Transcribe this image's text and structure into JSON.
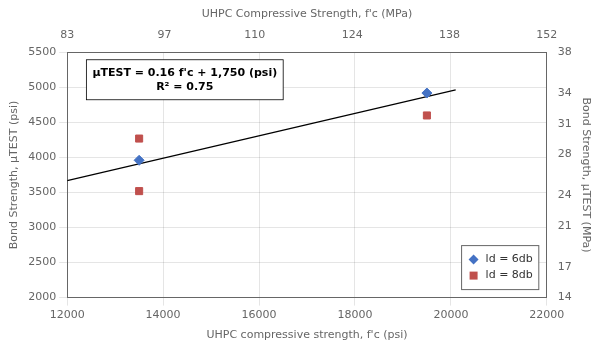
{
  "chart_data": {
    "type": "scatter",
    "xlabel": "UHPC compressive strength, f'c (psi)",
    "x2label": "UHPC Compressive Strength, f'c (MPa)",
    "ylabel": "Bond Strength, μTEST (psi)",
    "y2label": "Bond Strength, μTEST (MPa)",
    "xlim": [
      12000,
      22000
    ],
    "xticks": [
      12000,
      14000,
      16000,
      18000,
      20000,
      22000
    ],
    "x2lim": [
      83,
      152
    ],
    "x2ticks": [
      83,
      97,
      110,
      124,
      138,
      152
    ],
    "ylim": [
      2000,
      5500
    ],
    "yticks": [
      2000,
      2500,
      3000,
      3500,
      4000,
      4500,
      5000,
      5500
    ],
    "y2lim": [
      14,
      38
    ],
    "y2ticks": [
      14,
      17,
      21,
      24,
      28,
      31,
      34,
      38
    ],
    "grid": true,
    "legend": "lower right",
    "series": [
      {
        "name": "ld = 6db",
        "color": "#4472C4",
        "marker": "diamond",
        "x": [
          13500,
          19500
        ],
        "values": [
          3960,
          4920
        ]
      },
      {
        "name": "ld = 8db",
        "color": "#C0504D",
        "marker": "square",
        "x": [
          13500,
          13500,
          19500
        ],
        "values": [
          3520,
          4270,
          4600
        ]
      },
      {
        "type": "line",
        "color": "#000000",
        "x": [
          12000,
          20100
        ],
        "values": [
          3670,
          4966
        ]
      }
    ],
    "annotations": [
      {
        "text": "μTEST = 0.16 f'c + 1,750 (psi)\nR² = 0.75"
      }
    ]
  }
}
